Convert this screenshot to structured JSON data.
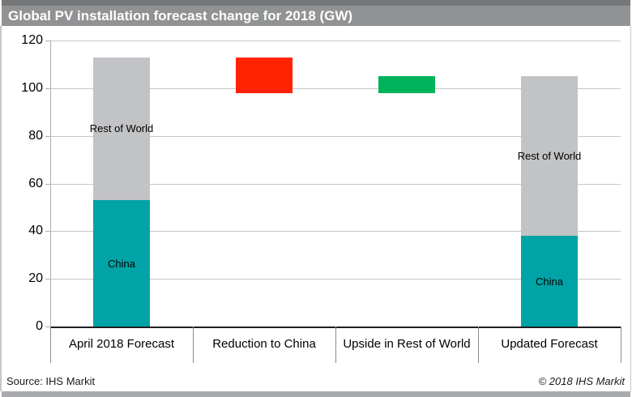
{
  "footer": {
    "source": "Source: IHS Markit",
    "copyright": "© 2018 IHS Markit"
  },
  "colors": {
    "teal": "#00A4A6",
    "gray": "#C2C3C5",
    "red": "#FF2200",
    "green": "#00B35B",
    "title_bar_bg": "#909294",
    "title_text": "#FFFFFF",
    "top_strip": "#747678",
    "bottom_strip": "#A9ABAD"
  },
  "chart_data": {
    "type": "bar",
    "subtype": "waterfall with stacked end bars and floating change bars",
    "title": "Global PV installation forecast change for 2018 (GW)",
    "categories": [
      "April 2018 Forecast",
      "Reduction to China",
      "Upside in Rest of World",
      "Updated Forecast"
    ],
    "xlabel": "",
    "ylabel": "",
    "ylim": [
      0,
      120
    ],
    "yticks": [
      0,
      20,
      40,
      60,
      80,
      100,
      120
    ],
    "grid": "horizontal",
    "legend": "none (segments labeled inline)",
    "totals": {
      "april_2018_forecast": 113,
      "reduction_to_china": -15,
      "upside_in_rest_of_world": 7,
      "updated_forecast": 105
    },
    "bars": [
      {
        "category": "April 2018 Forecast",
        "segments": [
          {
            "label": "China",
            "from": 0,
            "to": 53,
            "value": 53,
            "color_key": "teal"
          },
          {
            "label": "Rest of World",
            "from": 53,
            "to": 113,
            "value": 60,
            "color_key": "gray"
          }
        ]
      },
      {
        "category": "Reduction to China",
        "segments": [
          {
            "label": "",
            "from": 98,
            "to": 113,
            "value": 15,
            "color_key": "red"
          }
        ]
      },
      {
        "category": "Upside in Rest of World",
        "segments": [
          {
            "label": "",
            "from": 98,
            "to": 105,
            "value": 7,
            "color_key": "green"
          }
        ]
      },
      {
        "category": "Updated Forecast",
        "segments": [
          {
            "label": "China",
            "from": 0,
            "to": 38,
            "value": 38,
            "color_key": "teal"
          },
          {
            "label": "Rest of World",
            "from": 38,
            "to": 105,
            "value": 67,
            "color_key": "gray"
          }
        ]
      }
    ]
  }
}
